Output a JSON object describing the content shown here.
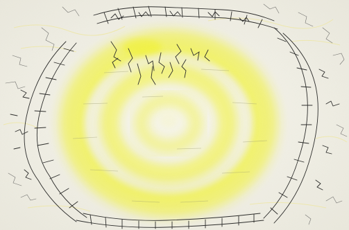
{
  "image": {
    "subject": "pen-ink-and-yellow-pastel-drawing",
    "colors": {
      "paper": "#f4f2ea",
      "yellow_bright": "#f2f31e",
      "yellow_soft": "#f6f58a",
      "ink": "#2a2a2a",
      "ink_light": "#5a5a5a"
    }
  }
}
